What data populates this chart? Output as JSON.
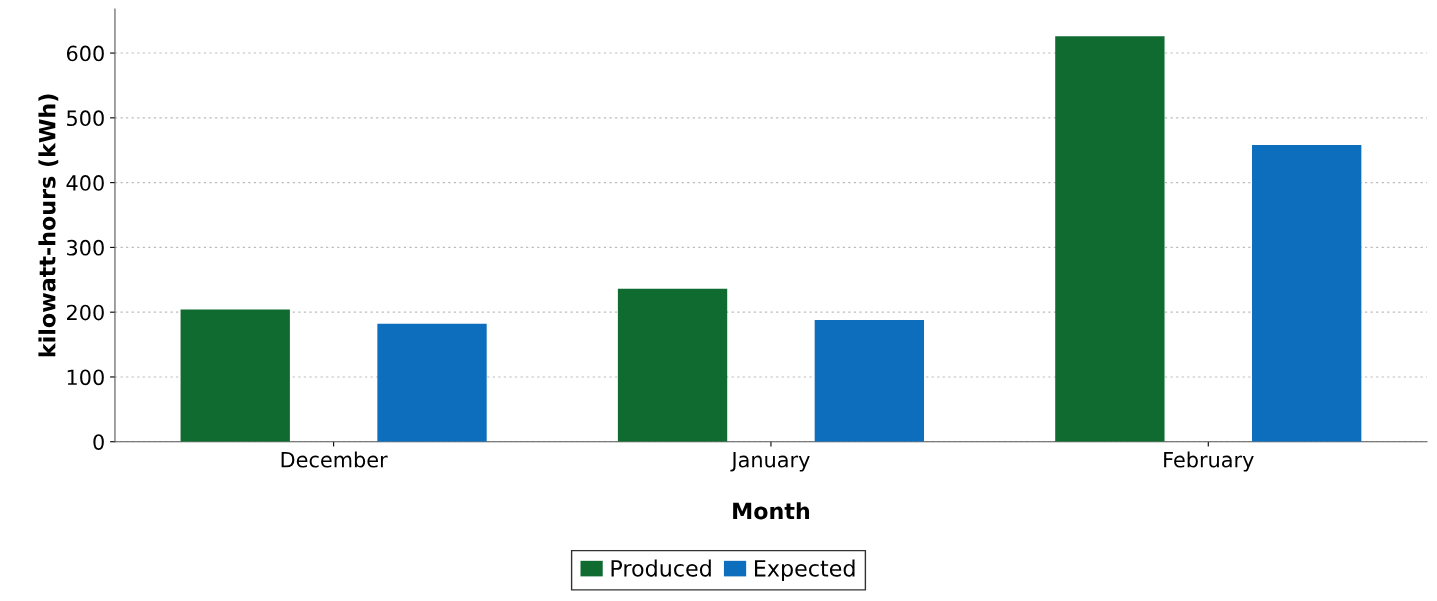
{
  "chart_data": {
    "type": "bar",
    "xlabel": "Month",
    "ylabel": "kilowatt-hours (kWh)",
    "categories": [
      "December",
      "January",
      "February"
    ],
    "series": [
      {
        "name": "Produced",
        "color": "#0f6b30",
        "values": [
          204,
          236,
          626
        ]
      },
      {
        "name": "Expected",
        "color": "#0d6ebd",
        "values": [
          182,
          188,
          458
        ]
      }
    ],
    "ylim": [
      0,
      668
    ],
    "yticks": [
      0,
      100,
      200,
      300,
      400,
      500,
      600
    ],
    "grid": "y",
    "legend": "bottom"
  }
}
